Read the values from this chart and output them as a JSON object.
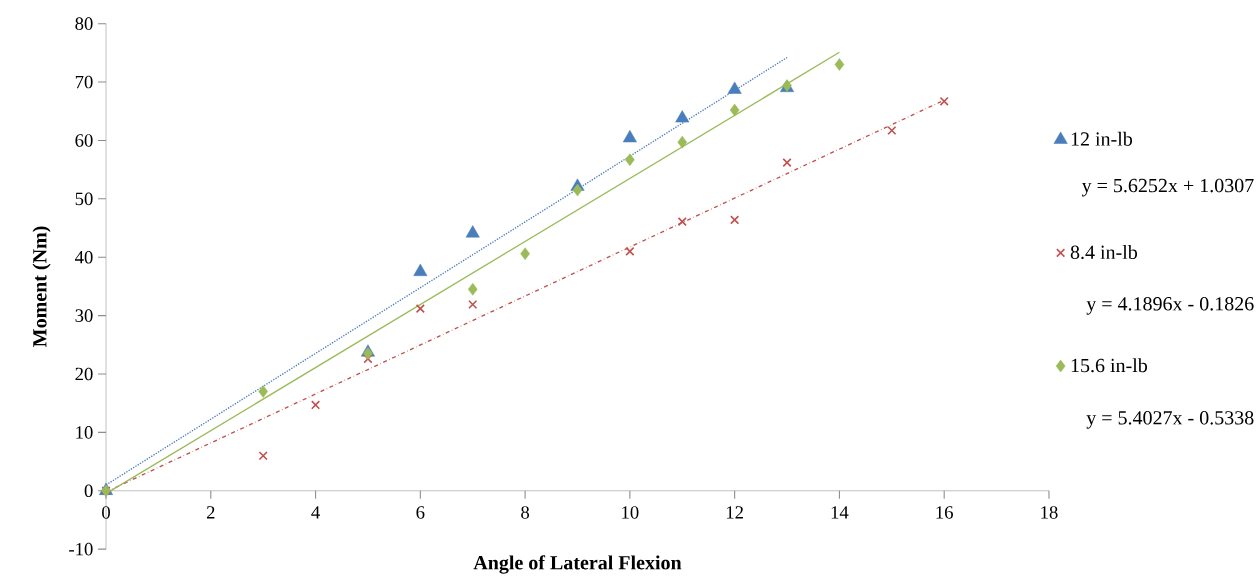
{
  "chart_data": {
    "type": "scatter",
    "xlabel": "Angle of Lateral Flexion",
    "ylabel": "Moment (Nm)",
    "xlim": [
      0,
      18
    ],
    "ylim": [
      -10,
      80
    ],
    "xticks": [
      0,
      2,
      4,
      6,
      8,
      10,
      12,
      14,
      16,
      18
    ],
    "yticks": [
      -10,
      0,
      10,
      20,
      30,
      40,
      50,
      60,
      70,
      80
    ],
    "legend": "right",
    "series": [
      {
        "name": "12 in-lb",
        "marker": "triangle",
        "color": "#4a7ebb",
        "x": [
          0,
          5,
          6,
          7,
          9,
          10,
          11,
          12,
          13
        ],
        "values": [
          0,
          23.7,
          37.5,
          44.1,
          52.1,
          60.4,
          63.8,
          68.7,
          69.0
        ]
      },
      {
        "type": "line",
        "marker": "none",
        "line_style": "dotted",
        "color": "#4a7ebb",
        "x": [
          0,
          13
        ],
        "values": [
          1.0,
          74.2
        ]
      },
      {
        "name": "8.4 in-lb",
        "marker": "cross",
        "color": "#c0504d",
        "x": [
          0,
          3,
          4,
          5,
          6,
          7,
          10,
          11,
          12,
          13,
          15,
          16
        ],
        "values": [
          0,
          6.0,
          14.7,
          22.6,
          31.2,
          31.9,
          41.0,
          46.1,
          46.4,
          56.2,
          61.7,
          66.7
        ]
      },
      {
        "type": "line",
        "marker": "none",
        "line_style": "dashed",
        "color": "#c0504d",
        "x": [
          0,
          16
        ],
        "values": [
          -0.2,
          66.9
        ]
      },
      {
        "name": "15.6 in-lb",
        "marker": "diamond",
        "color": "#9bbb59",
        "x": [
          0,
          3,
          5,
          7,
          8,
          9,
          10,
          11,
          12,
          13,
          14
        ],
        "values": [
          0,
          17.0,
          23.5,
          34.5,
          40.6,
          51.5,
          56.7,
          59.7,
          65.2,
          69.4,
          73.0
        ]
      },
      {
        "type": "line",
        "marker": "none",
        "line_style": "solid",
        "color": "#9bbb59",
        "x": [
          0,
          14
        ],
        "values": [
          -0.5,
          75.1
        ]
      }
    ],
    "annotations": [
      "y = 5.6252x + 1.0307",
      "y = 4.1896x - 0.1826",
      "y = 5.4027x - 0.5338"
    ]
  }
}
